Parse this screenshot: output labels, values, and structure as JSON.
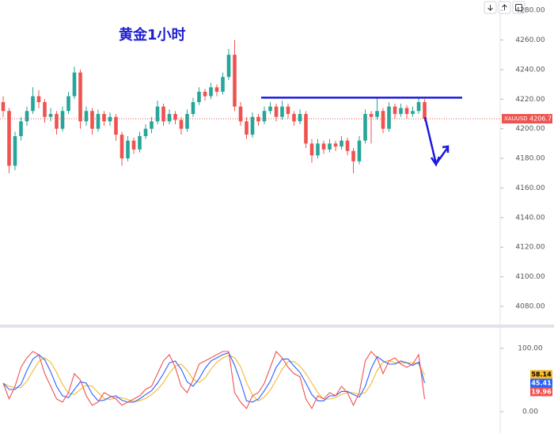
{
  "chart_data": [
    {
      "type": "candlestick",
      "title": "黄金1小时",
      "title_color": "#1f1fd1",
      "symbol": "XAUUSD",
      "last_price": 4206.77,
      "up_color": "#26a69a",
      "down_color": "#ef5350",
      "horizontal_line": 4221,
      "line_color": "#1a1ae0",
      "ylim": [
        4067.7,
        4287
      ],
      "yticks": [
        {
          "value": 4080,
          "label": "4080.00"
        },
        {
          "value": 4100,
          "label": "4100.00"
        },
        {
          "value": 4120,
          "label": "4120.00"
        },
        {
          "value": 4140,
          "label": "4140.00"
        },
        {
          "value": 4160,
          "label": "4160.00"
        },
        {
          "value": 4180,
          "label": "4180.00"
        },
        {
          "value": 4200,
          "label": "4200.00"
        },
        {
          "value": 4220,
          "label": "4220.00"
        },
        {
          "value": 4240,
          "label": "4240.00"
        },
        {
          "value": 4260,
          "label": "4260.00"
        },
        {
          "value": 4280,
          "label": "4280.00"
        }
      ],
      "ohlc": [
        [
          4218,
          4222,
          4208,
          4212
        ],
        [
          4212,
          4214,
          4170,
          4175
        ],
        [
          4175,
          4198,
          4172,
          4195
        ],
        [
          4195,
          4208,
          4192,
          4205
        ],
        [
          4205,
          4215,
          4202,
          4212
        ],
        [
          4212,
          4228,
          4210,
          4222
        ],
        [
          4222,
          4226,
          4214,
          4218
        ],
        [
          4218,
          4220,
          4204,
          4208
        ],
        [
          4208,
          4214,
          4205,
          4210
        ],
        [
          4210,
          4212,
          4196,
          4200
        ],
        [
          4200,
          4215,
          4198,
          4212
        ],
        [
          4212,
          4225,
          4210,
          4222
        ],
        [
          4222,
          4242,
          4220,
          4238
        ],
        [
          4238,
          4240,
          4200,
          4205
        ],
        [
          4205,
          4215,
          4202,
          4212
        ],
        [
          4212,
          4214,
          4196,
          4200
        ],
        [
          4200,
          4213,
          4198,
          4210
        ],
        [
          4210,
          4212,
          4202,
          4205
        ],
        [
          4205,
          4211,
          4202,
          4208
        ],
        [
          4208,
          4210,
          4192,
          4196
        ],
        [
          4196,
          4198,
          4175,
          4180
        ],
        [
          4180,
          4195,
          4178,
          4192
        ],
        [
          4192,
          4194,
          4183,
          4186
        ],
        [
          4186,
          4198,
          4184,
          4195
        ],
        [
          4195,
          4203,
          4193,
          4200
        ],
        [
          4200,
          4208,
          4197,
          4205
        ],
        [
          4205,
          4219,
          4203,
          4215
        ],
        [
          4215,
          4217,
          4202,
          4205
        ],
        [
          4205,
          4213,
          4203,
          4210
        ],
        [
          4210,
          4212,
          4203,
          4206
        ],
        [
          4206,
          4208,
          4196,
          4200
        ],
        [
          4200,
          4213,
          4198,
          4210
        ],
        [
          4210,
          4221,
          4208,
          4218
        ],
        [
          4218,
          4228,
          4216,
          4225
        ],
        [
          4225,
          4227,
          4219,
          4222
        ],
        [
          4222,
          4231,
          4220,
          4228
        ],
        [
          4228,
          4230,
          4222,
          4225
        ],
        [
          4225,
          4238,
          4223,
          4235
        ],
        [
          4235,
          4254,
          4233,
          4250
        ],
        [
          4250,
          4260,
          4212,
          4215
        ],
        [
          4215,
          4218,
          4202,
          4205
        ],
        [
          4205,
          4208,
          4193,
          4196
        ],
        [
          4196,
          4211,
          4194,
          4208
        ],
        [
          4208,
          4210,
          4202,
          4205
        ],
        [
          4205,
          4215,
          4203,
          4212
        ],
        [
          4212,
          4218,
          4210,
          4215
        ],
        [
          4215,
          4217,
          4205,
          4208
        ],
        [
          4208,
          4219,
          4206,
          4215
        ],
        [
          4215,
          4217,
          4207,
          4210
        ],
        [
          4210,
          4212,
          4202,
          4205
        ],
        [
          4205,
          4213,
          4203,
          4210
        ],
        [
          4210,
          4212,
          4187,
          4190
        ],
        [
          4190,
          4193,
          4177,
          4182
        ],
        [
          4182,
          4193,
          4180,
          4190
        ],
        [
          4190,
          4192,
          4183,
          4186
        ],
        [
          4186,
          4193,
          4184,
          4190
        ],
        [
          4190,
          4192,
          4185,
          4188
        ],
        [
          4188,
          4195,
          4186,
          4192
        ],
        [
          4192,
          4194,
          4182,
          4185
        ],
        [
          4185,
          4187,
          4170,
          4178
        ],
        [
          4178,
          4195,
          4176,
          4192
        ],
        [
          4192,
          4213,
          4190,
          4210
        ],
        [
          4210,
          4212,
          4190,
          4208
        ],
        [
          4208,
          4221,
          4206,
          4212
        ],
        [
          4212,
          4214,
          4197,
          4200
        ],
        [
          4200,
          4218,
          4198,
          4215
        ],
        [
          4215,
          4217,
          4207,
          4210
        ],
        [
          4210,
          4217,
          4208,
          4214
        ],
        [
          4214,
          4216,
          4207,
          4210
        ],
        [
          4210,
          4215,
          4208,
          4212
        ],
        [
          4212,
          4221,
          4210,
          4218
        ],
        [
          4218,
          4220,
          4205,
          4206.77
        ]
      ]
    },
    {
      "type": "line",
      "ylim": [
        -31.25,
        131.25
      ],
      "yticks": [
        {
          "value": 0,
          "label": "0.00"
        },
        {
          "value": 100,
          "label": "100.00"
        }
      ],
      "series": [
        {
          "color": "#f5b82e",
          "values": [
            45,
            40,
            38,
            38,
            48,
            64,
            79,
            85,
            78,
            62,
            43,
            29,
            27,
            35,
            42,
            40,
            30,
            21,
            19,
            22,
            22,
            19,
            16,
            17,
            21,
            27,
            35,
            46,
            61,
            72,
            75,
            65,
            51,
            46,
            53,
            67,
            78,
            85,
            89,
            85,
            71,
            46,
            26,
            17,
            23,
            34,
            50,
            67,
            79,
            79,
            72,
            60,
            45,
            30,
            20,
            20,
            22,
            27,
            30,
            30,
            27,
            30,
            44,
            65,
            78,
            81,
            77,
            77,
            77,
            77,
            76,
            58.14
          ]
        },
        {
          "color": "#2962ff",
          "values": [
            45,
            35,
            35,
            43,
            65,
            83,
            90,
            82,
            63,
            40,
            25,
            22,
            35,
            47,
            45,
            28,
            17,
            18,
            23,
            25,
            18,
            15,
            15,
            20,
            27,
            33,
            45,
            60,
            77,
            80,
            67,
            47,
            40,
            52,
            68,
            80,
            85,
            90,
            93,
            73,
            47,
            17,
            15,
            20,
            33,
            48,
            70,
            83,
            83,
            72,
            62,
            45,
            27,
            17,
            17,
            25,
            25,
            32,
            32,
            27,
            23,
            40,
            68,
            87,
            80,
            75,
            75,
            80,
            77,
            73,
            78,
            45.41
          ]
        },
        {
          "color": "#ef5350",
          "values": [
            45,
            20,
            40,
            70,
            85,
            95,
            90,
            60,
            40,
            20,
            15,
            30,
            60,
            50,
            25,
            10,
            15,
            30,
            25,
            20,
            10,
            15,
            20,
            25,
            35,
            40,
            60,
            80,
            90,
            70,
            40,
            30,
            50,
            75,
            80,
            85,
            90,
            95,
            95,
            30,
            15,
            5,
            25,
            30,
            45,
            70,
            95,
            85,
            70,
            60,
            55,
            20,
            5,
            25,
            20,
            30,
            25,
            40,
            30,
            10,
            30,
            80,
            95,
            85,
            60,
            80,
            85,
            75,
            70,
            75,
            90,
            19.96
          ]
        }
      ]
    }
  ]
}
